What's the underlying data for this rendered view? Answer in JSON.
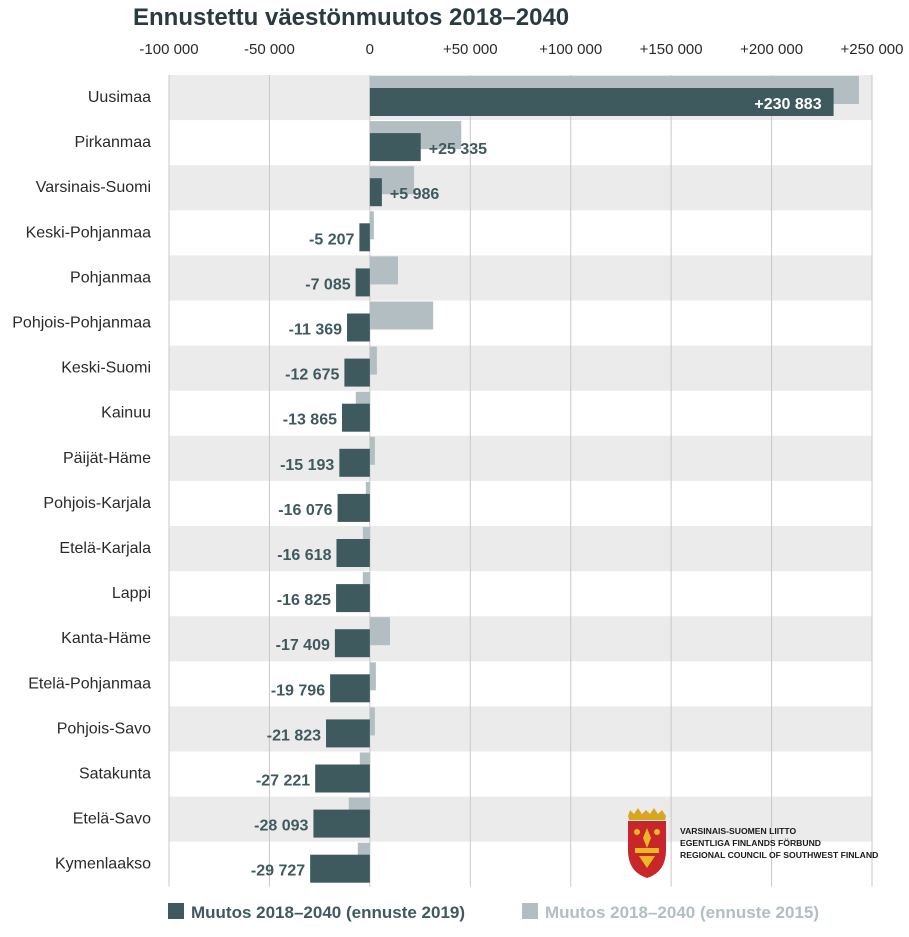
{
  "colors": {
    "series_2019": "#3f5a5f",
    "series_2015": "#b2bec1",
    "band": "#ebebeb",
    "gridline": "#c8c8c8",
    "title": "#2a3a40"
  },
  "logo": {
    "lines": [
      "VARSINAIS-SUOMEN LIITTO",
      "EGENTLIGA FINLANDS FÖRBUND",
      "REGIONAL COUNCIL OF SOUTHWEST FINLAND"
    ],
    "icon": "coat-of-arms-icon"
  },
  "chart_data": {
    "type": "bar",
    "orientation": "horizontal",
    "title": "Ennustettu väestönmuutos 2018–2040",
    "xlim": [
      -100000,
      250000
    ],
    "xticks": [
      -100000,
      -50000,
      0,
      50000,
      100000,
      150000,
      200000,
      250000
    ],
    "xtick_labels": [
      "-100 000",
      "-50 000",
      "0",
      "+50 000",
      "+100 000",
      "+150 000",
      "+200 000",
      "+250 000"
    ],
    "grid": true,
    "legend_position": "bottom",
    "categories": [
      "Uusimaa",
      "Pirkanmaa",
      "Varsinais-Suomi",
      "Keski-Pohjanmaa",
      "Pohjanmaa",
      "Pohjois-Pohjanmaa",
      "Keski-Suomi",
      "Kainuu",
      "Päijät-Häme",
      "Pohjois-Karjala",
      "Etelä-Karjala",
      "Lappi",
      "Kanta-Häme",
      "Etelä-Pohjanmaa",
      "Pohjois-Savo",
      "Satakunta",
      "Etelä-Savo",
      "Kymenlaakso"
    ],
    "series": [
      {
        "name": "Muutos 2018–2040 (ennuste 2019)",
        "values": [
          230883,
          25335,
          5986,
          -5207,
          -7085,
          -11369,
          -12675,
          -13865,
          -15193,
          -16076,
          -16618,
          -16825,
          -17409,
          -19796,
          -21823,
          -27221,
          -28093,
          -29727
        ],
        "labels": [
          "+230 883",
          "+25 335",
          "+5 986",
          "-5 207",
          "-7 085",
          "-11 369",
          "-12 675",
          "-13 865",
          "-15 193",
          "-16 076",
          "-16 618",
          "-16 825",
          "-17 409",
          "-19 796",
          "-21 823",
          "-27 221",
          "-28 093",
          "-29 727"
        ]
      },
      {
        "name": "Muutos 2018–2040 (ennuste 2015)",
        "values": [
          243500,
          45500,
          22000,
          2000,
          14000,
          31500,
          3500,
          -7000,
          2500,
          -2000,
          -3500,
          -3500,
          10000,
          3000,
          2500,
          -5000,
          -10500,
          -6000
        ]
      }
    ]
  }
}
